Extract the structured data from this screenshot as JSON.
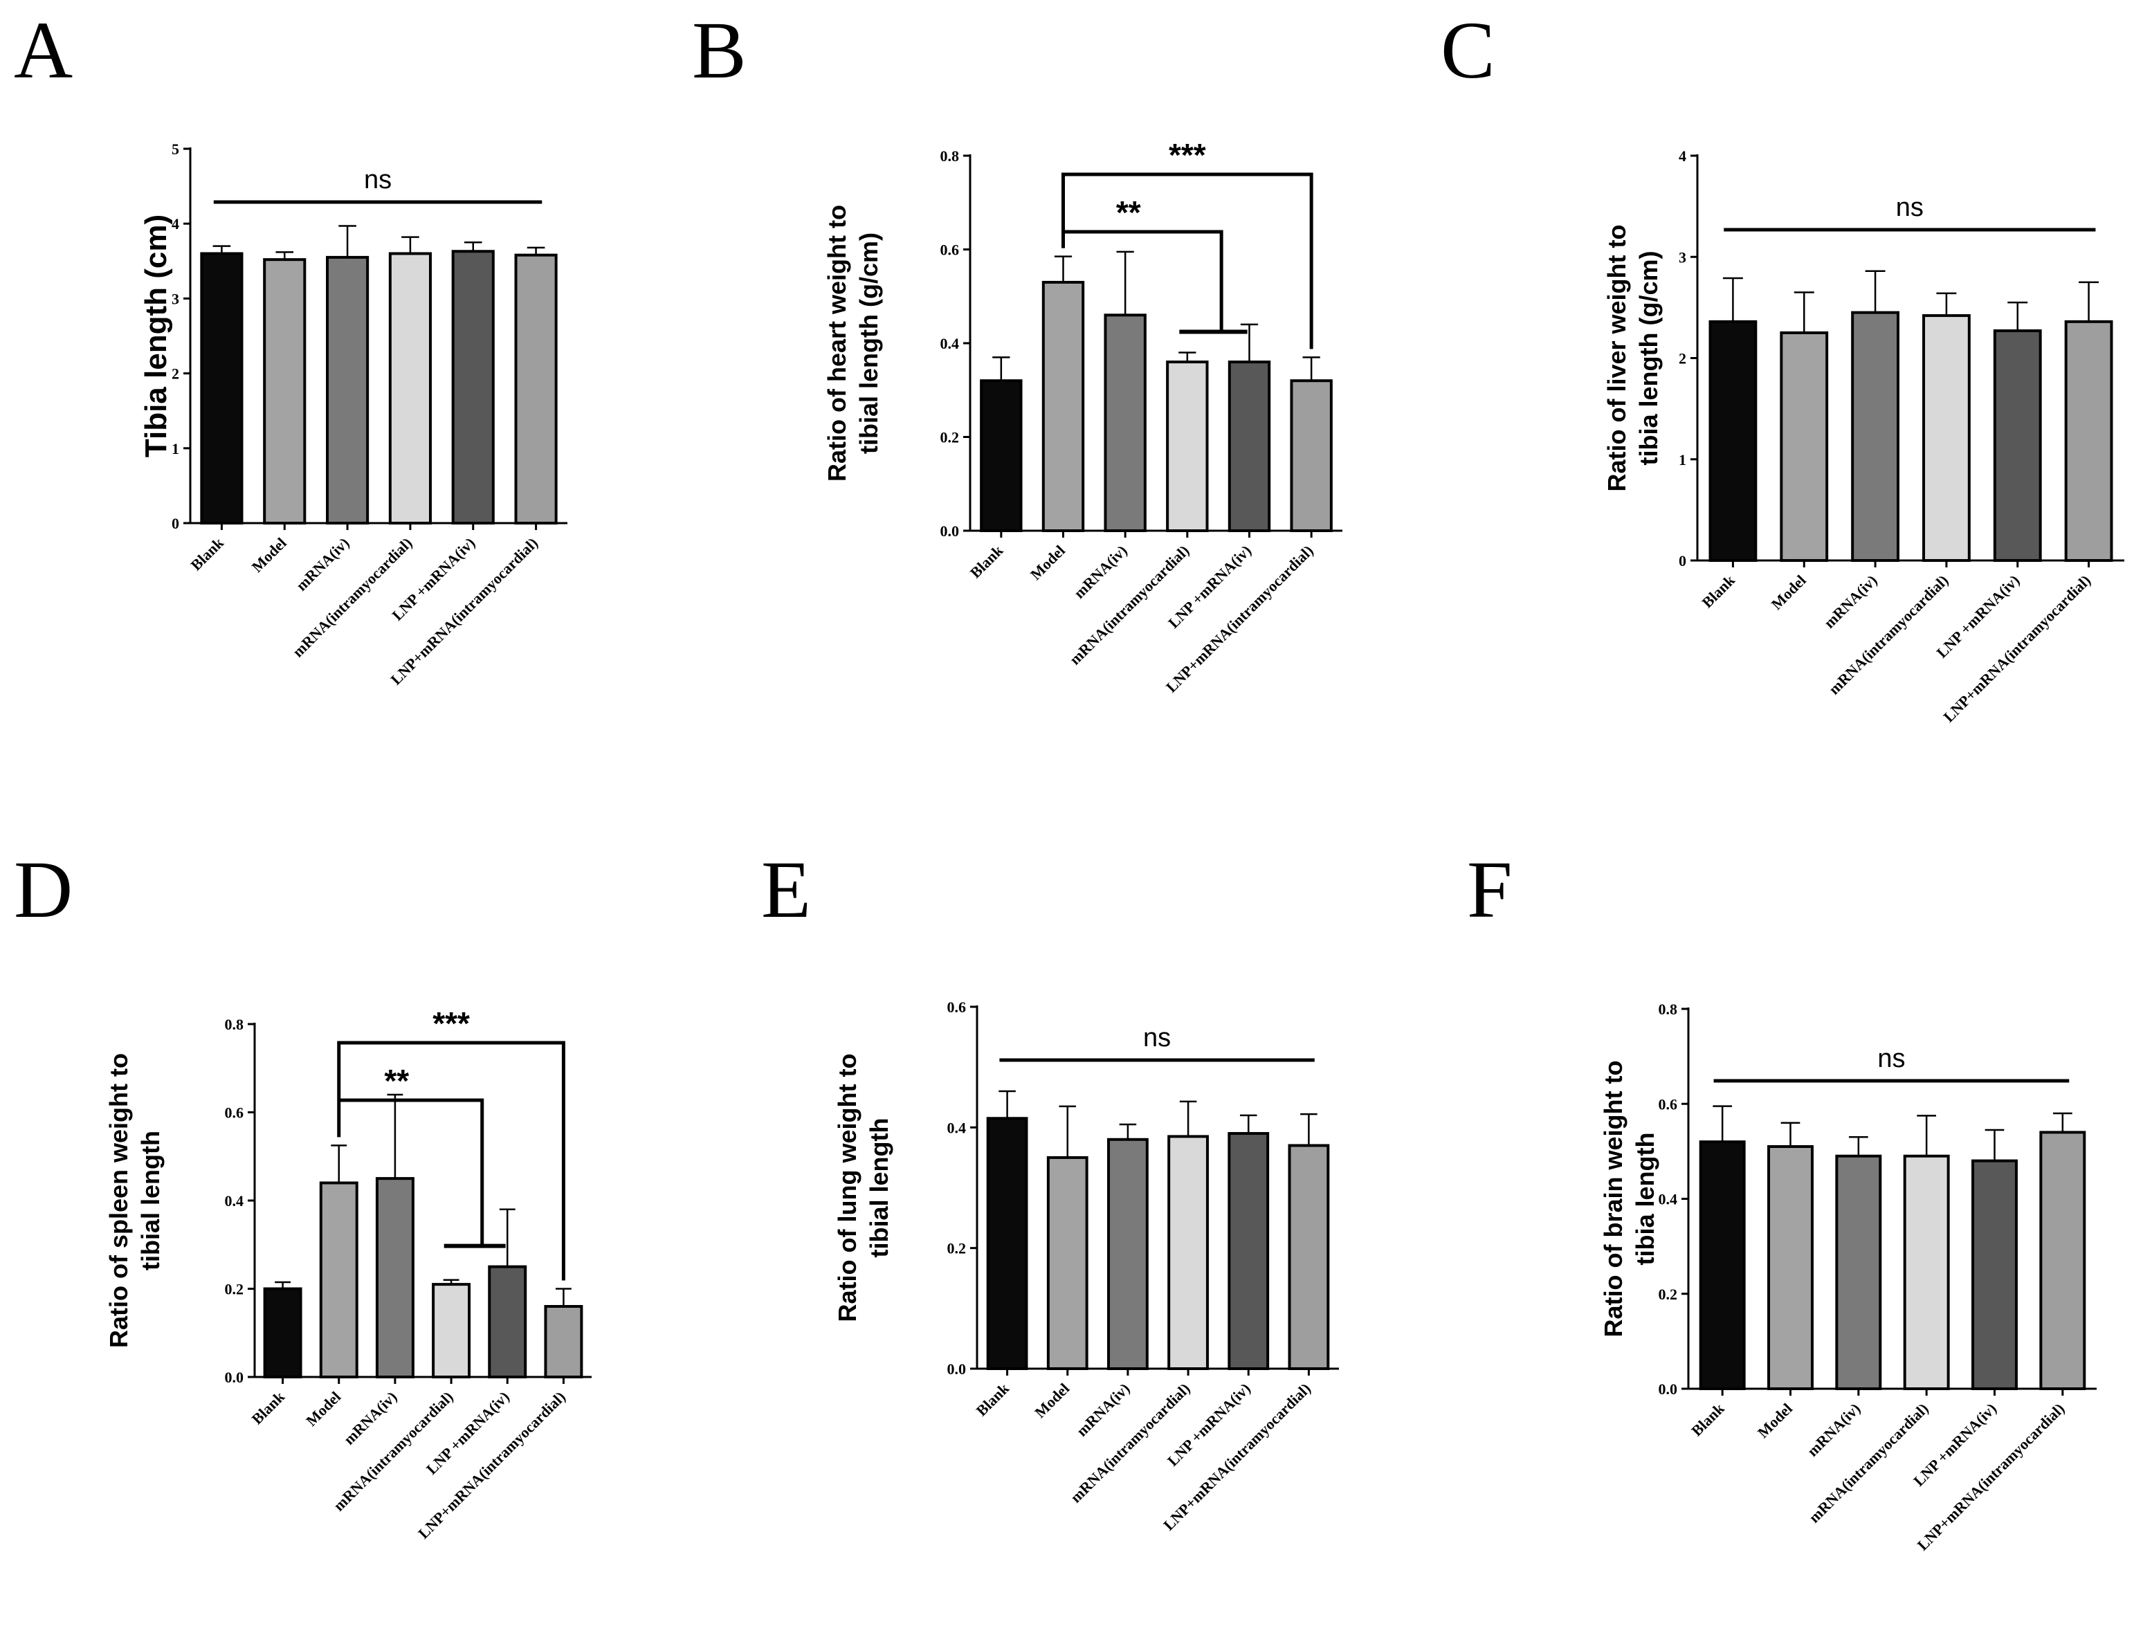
{
  "figure": {
    "categories": [
      "Blank",
      "Model",
      "mRNA(iv)",
      "mRNA(intramyocardial)",
      "LNP +mRNA(iv)",
      "LNP+mRNA(intramyocardial)"
    ],
    "bar_colors": [
      "#0a0a0a",
      "#a3a3a3",
      "#7a7a7a",
      "#d9d9d9",
      "#585858",
      "#9e9e9e"
    ]
  },
  "chart_data": [
    {
      "panel": "A",
      "type": "bar",
      "ylabel": "Tibia length (cm)",
      "ylim": [
        0,
        5
      ],
      "yticks": [
        "0",
        "1",
        "2",
        "3",
        "4",
        "5"
      ],
      "values": [
        3.6,
        3.52,
        3.55,
        3.6,
        3.63,
        3.58
      ],
      "errors": [
        0.1,
        0.1,
        0.42,
        0.22,
        0.12,
        0.1
      ],
      "annotations": [
        {
          "label": "ns",
          "type": "line"
        }
      ]
    },
    {
      "panel": "B",
      "type": "bar",
      "ylabel": [
        "Ratio of heart weight to",
        "tibial length (g/cm)"
      ],
      "ylim": [
        0,
        0.8
      ],
      "yticks": [
        "0.0",
        "0.2",
        "0.4",
        "0.6",
        "0.8"
      ],
      "values": [
        0.32,
        0.53,
        0.46,
        0.36,
        0.36,
        0.32
      ],
      "errors": [
        0.05,
        0.055,
        0.135,
        0.02,
        0.08,
        0.05
      ],
      "annotations": [
        {
          "label": "**",
          "type": "bracket-group",
          "from": 1,
          "to": [
            3,
            4
          ]
        },
        {
          "label": "***",
          "type": "bracket",
          "from": 1,
          "to": 5
        }
      ]
    },
    {
      "panel": "C",
      "type": "bar",
      "ylabel": [
        "Ratio of liver weight to",
        "tibia length (g/cm)"
      ],
      "ylim": [
        0,
        4
      ],
      "yticks": [
        "0",
        "1",
        "2",
        "3",
        "4"
      ],
      "values": [
        2.36,
        2.25,
        2.45,
        2.42,
        2.27,
        2.36
      ],
      "errors": [
        0.43,
        0.4,
        0.41,
        0.22,
        0.28,
        0.39
      ],
      "annotations": [
        {
          "label": "ns",
          "type": "line"
        }
      ]
    },
    {
      "panel": "D",
      "type": "bar",
      "ylabel": [
        "Ratio of spleen weight to",
        "tibial length"
      ],
      "ylim": [
        0,
        0.8
      ],
      "yticks": [
        "0.0",
        "0.2",
        "0.4",
        "0.6",
        "0.8"
      ],
      "values": [
        0.2,
        0.44,
        0.45,
        0.21,
        0.25,
        0.16
      ],
      "errors": [
        0.015,
        0.085,
        0.19,
        0.01,
        0.13,
        0.04
      ],
      "annotations": [
        {
          "label": "**",
          "type": "bracket-group",
          "from": 1,
          "to": [
            3,
            4
          ]
        },
        {
          "label": "***",
          "type": "bracket",
          "from": 1,
          "to": 5
        }
      ]
    },
    {
      "panel": "E",
      "type": "bar",
      "ylabel": [
        "Ratio of lung weight to",
        "tibial length"
      ],
      "ylim": [
        0,
        0.6
      ],
      "yticks": [
        "0.0",
        "0.2",
        "0.4",
        "0.6"
      ],
      "values": [
        0.415,
        0.35,
        0.38,
        0.385,
        0.39,
        0.37
      ],
      "errors": [
        0.045,
        0.085,
        0.025,
        0.058,
        0.03,
        0.052
      ],
      "annotations": [
        {
          "label": "ns",
          "type": "line"
        }
      ]
    },
    {
      "panel": "F",
      "type": "bar",
      "ylabel": [
        "Ratio of brain weight to",
        "tibia length"
      ],
      "ylim": [
        0,
        0.8
      ],
      "yticks": [
        "0.0",
        "0.2",
        "0.4",
        "0.6",
        "0.8"
      ],
      "values": [
        0.52,
        0.51,
        0.49,
        0.49,
        0.48,
        0.54
      ],
      "errors": [
        0.075,
        0.05,
        0.04,
        0.085,
        0.065,
        0.04
      ],
      "annotations": [
        {
          "label": "ns",
          "type": "line"
        }
      ]
    }
  ]
}
